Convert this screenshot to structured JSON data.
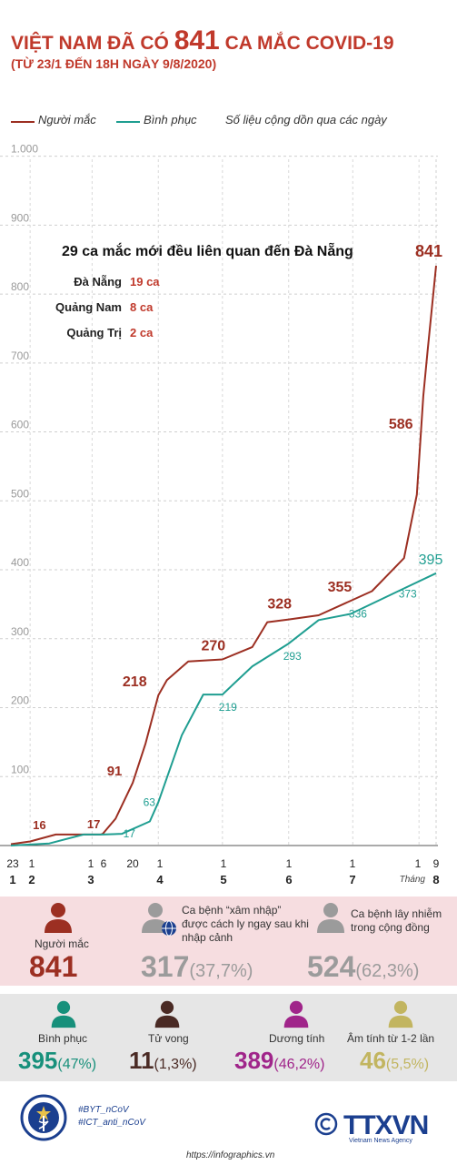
{
  "header": {
    "title_pre": "VIỆT NAM ĐÃ CÓ",
    "title_num": "841",
    "title_post": "CA MẮC COVID-19",
    "subtitle": "(TỪ 23/1 ĐẾN 18H NGÀY 9/8/2020)"
  },
  "legend": {
    "infected": "Người mắc",
    "recovered": "Bình phục",
    "note": "Số liệu cộng dồn qua các ngày"
  },
  "colors": {
    "infected": "#9c2f22",
    "recovered": "#1f9e91",
    "accent": "#c0392b",
    "gray": "#9b9b9b",
    "green": "#17907b",
    "dark_brown": "#4a2a24",
    "purple": "#a0258a",
    "olive": "#c2b560",
    "navy": "#1b3f8f"
  },
  "chart_data": {
    "type": "line",
    "ylim": [
      0,
      1000
    ],
    "yticks": [
      "100",
      "200",
      "300",
      "400",
      "500",
      "600",
      "700",
      "800",
      "900",
      "1.000"
    ],
    "xtick_days": [
      {
        "day": "23",
        "month": "1"
      },
      {
        "day": "1",
        "month": "2"
      },
      {
        "day": "1",
        "month": ""
      },
      {
        "day": "6",
        "month": ""
      },
      {
        "day": "",
        "month": "3"
      },
      {
        "day": "20",
        "month": ""
      },
      {
        "day": "1",
        "month": "4"
      },
      {
        "day": "1",
        "month": "5"
      },
      {
        "day": "1",
        "month": "6"
      },
      {
        "day": "1",
        "month": "7"
      },
      {
        "day": "1",
        "month": ""
      },
      {
        "day": "9",
        "month": "8"
      }
    ],
    "x_axis_unit": "Tháng",
    "series": [
      {
        "name": "Người mắc",
        "points": [
          [
            "2020-01-23",
            2
          ],
          [
            "2020-02-01",
            6
          ],
          [
            "2020-02-13",
            16
          ],
          [
            "2020-03-05",
            16
          ],
          [
            "2020-03-06",
            17
          ],
          [
            "2020-03-12",
            39
          ],
          [
            "2020-03-20",
            91
          ],
          [
            "2020-03-26",
            148
          ],
          [
            "2020-04-01",
            218
          ],
          [
            "2020-04-05",
            240
          ],
          [
            "2020-04-15",
            267
          ],
          [
            "2020-05-01",
            270
          ],
          [
            "2020-05-15",
            288
          ],
          [
            "2020-05-22",
            324
          ],
          [
            "2020-06-01",
            328
          ],
          [
            "2020-06-15",
            334
          ],
          [
            "2020-06-30",
            355
          ],
          [
            "2020-07-10",
            369
          ],
          [
            "2020-07-25",
            417
          ],
          [
            "2020-07-31",
            509
          ],
          [
            "2020-08-03",
            652
          ],
          [
            "2020-08-05",
            717
          ],
          [
            "2020-08-09",
            841
          ]
        ],
        "labels": [
          {
            "x": "2020-02-13",
            "text": "16"
          },
          {
            "x": "2020-03-06",
            "text": "17"
          },
          {
            "x": "2020-03-20",
            "text": "91"
          },
          {
            "x": "2020-04-01",
            "text": "218"
          },
          {
            "x": "2020-05-01",
            "text": "270"
          },
          {
            "x": "2020-06-01",
            "text": "328"
          },
          {
            "x": "2020-06-30",
            "text": "355"
          },
          {
            "x": "2020-08-01",
            "text": "586"
          },
          {
            "x": "2020-08-09",
            "text": "841"
          }
        ]
      },
      {
        "name": "Bình phục",
        "points": [
          [
            "2020-01-23",
            0
          ],
          [
            "2020-02-10",
            3
          ],
          [
            "2020-02-26",
            16
          ],
          [
            "2020-03-06",
            16
          ],
          [
            "2020-03-15",
            17
          ],
          [
            "2020-03-28",
            35
          ],
          [
            "2020-04-01",
            63
          ],
          [
            "2020-04-12",
            160
          ],
          [
            "2020-04-22",
            219
          ],
          [
            "2020-05-01",
            219
          ],
          [
            "2020-05-15",
            260
          ],
          [
            "2020-06-01",
            293
          ],
          [
            "2020-06-15",
            327
          ],
          [
            "2020-06-30",
            336
          ],
          [
            "2020-07-25",
            373
          ],
          [
            "2020-08-09",
            395
          ]
        ],
        "labels": [
          {
            "x": "2020-03-15",
            "text": "17"
          },
          {
            "x": "2020-04-01",
            "text": "63"
          },
          {
            "x": "2020-05-01",
            "text": "219"
          },
          {
            "x": "2020-06-01",
            "text": "293"
          },
          {
            "x": "2020-06-30",
            "text": "336"
          },
          {
            "x": "2020-07-25",
            "text": "373"
          },
          {
            "x": "2020-08-09",
            "text": "395"
          }
        ]
      }
    ],
    "annotation": {
      "title": "29 ca mắc mới đều liên quan đến Đà Nẵng",
      "rows": [
        {
          "place": "Đà Nẵng",
          "value": "19 ca"
        },
        {
          "place": "Quảng Nam",
          "value": "8 ca"
        },
        {
          "place": "Quảng Trị",
          "value": "2 ca"
        }
      ]
    }
  },
  "stats_row1": {
    "infected": {
      "label": "Người mắc",
      "value": "841"
    },
    "imported": {
      "label": "Ca bệnh “xâm nhập” được cách ly ngay sau khi nhập cảnh",
      "value": "317",
      "pct": "(37,7%)"
    },
    "community": {
      "label": "Ca bệnh lây nhiễm trong cộng đồng",
      "value": "524",
      "pct": "(62,3%)"
    }
  },
  "stats_row2": {
    "recovered": {
      "label": "Bình phục",
      "value": "395",
      "pct": "(47%)"
    },
    "deaths": {
      "label": "Tử vong",
      "value": "11",
      "pct": "(1,3%)"
    },
    "positive": {
      "label": "Dương tính",
      "value": "389",
      "pct": "(46,2%)"
    },
    "negative": {
      "label": "Âm tính từ 1-2 lần",
      "value": "46",
      "pct": "(5,5%)"
    }
  },
  "footer": {
    "hashtag1": "#BYT_nCoV",
    "hashtag2": "#ICT_anti_nCoV",
    "logo_text": "TTXVN",
    "logo_sub": "Vietnam News Agency",
    "url": "https://infographics.vn"
  }
}
